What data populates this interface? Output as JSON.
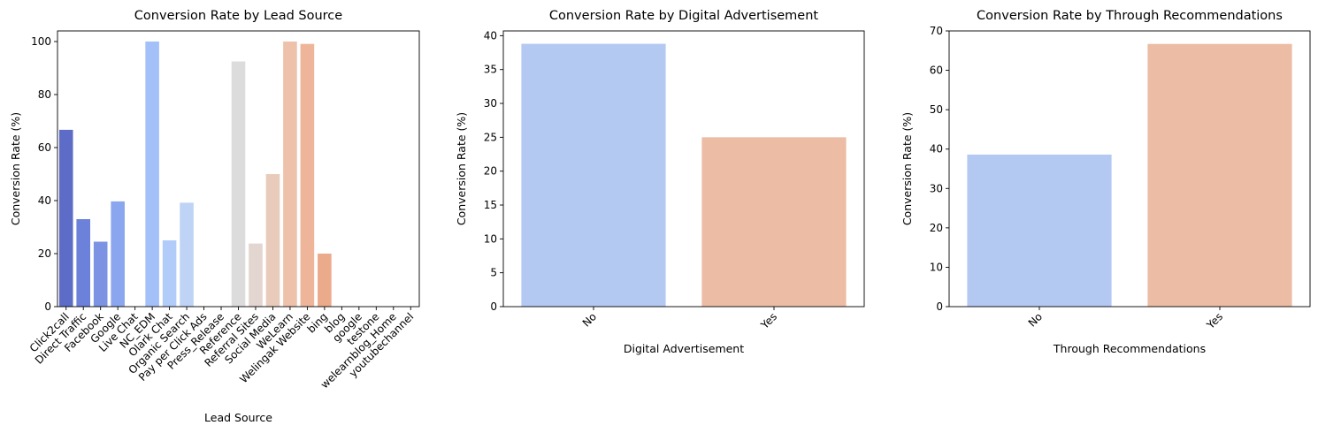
{
  "chart_data": [
    {
      "type": "bar",
      "title": "Conversion Rate by Lead Source",
      "xlabel": "Lead Source",
      "ylabel": "Conversion Rate (%)",
      "ylim": [
        0,
        104
      ],
      "yticks": [
        0,
        20,
        40,
        60,
        80,
        100
      ],
      "categories": [
        "Click2call",
        "Direct Traffic",
        "Facebook",
        "Google",
        "Live Chat",
        "NC_EDM",
        "Olark Chat",
        "Organic Search",
        "Pay per Click Ads",
        "Press_Release",
        "Reference",
        "Referral Sites",
        "Social Media",
        "WeLearn",
        "Welingak Website",
        "bing",
        "blog",
        "google",
        "testone",
        "welearnblog_Home",
        "youtubechannel"
      ],
      "values": [
        66.7,
        33.0,
        24.5,
        39.7,
        0,
        100,
        25.0,
        39.2,
        0,
        0,
        92.5,
        23.8,
        50.0,
        100,
        99.1,
        20.0,
        0,
        0,
        0,
        0,
        0
      ],
      "colors": [
        "#5d6dc7",
        "#6c81d9",
        "#7b93e2",
        "#8aa6ee",
        "#99b4f5",
        "#a3c0f8",
        "#b2ccf9",
        "#bfd3f6",
        "#cbd8ef",
        "#d6dce5",
        "#dcdcdc",
        "#e3d5cf",
        "#e9cbbb",
        "#edc1aa",
        "#eeb59a",
        "#ebaa8a",
        "#e89e7b",
        "#e4906c",
        "#dd825f",
        "#d57252",
        "#cd6245"
      ],
      "grid": false
    },
    {
      "type": "bar",
      "title": "Conversion Rate by Digital Advertisement",
      "xlabel": "Digital Advertisement",
      "ylabel": "Conversion Rate (%)",
      "ylim": [
        0,
        40.7
      ],
      "yticks": [
        0,
        5,
        10,
        15,
        20,
        25,
        30,
        35,
        40
      ],
      "categories": [
        "No",
        "Yes"
      ],
      "values": [
        38.8,
        25.0
      ],
      "colors": [
        "#b4c9f2",
        "#ecbca5"
      ],
      "grid": false
    },
    {
      "type": "bar",
      "title": "Conversion Rate by Through Recommendations",
      "xlabel": "Through Recommendations",
      "ylabel": "Conversion Rate (%)",
      "ylim": [
        0,
        70
      ],
      "yticks": [
        0,
        10,
        20,
        30,
        40,
        50,
        60,
        70
      ],
      "categories": [
        "No",
        "Yes"
      ],
      "values": [
        38.6,
        66.7
      ],
      "colors": [
        "#b4c9f2",
        "#ecbca5"
      ],
      "grid": false
    }
  ]
}
